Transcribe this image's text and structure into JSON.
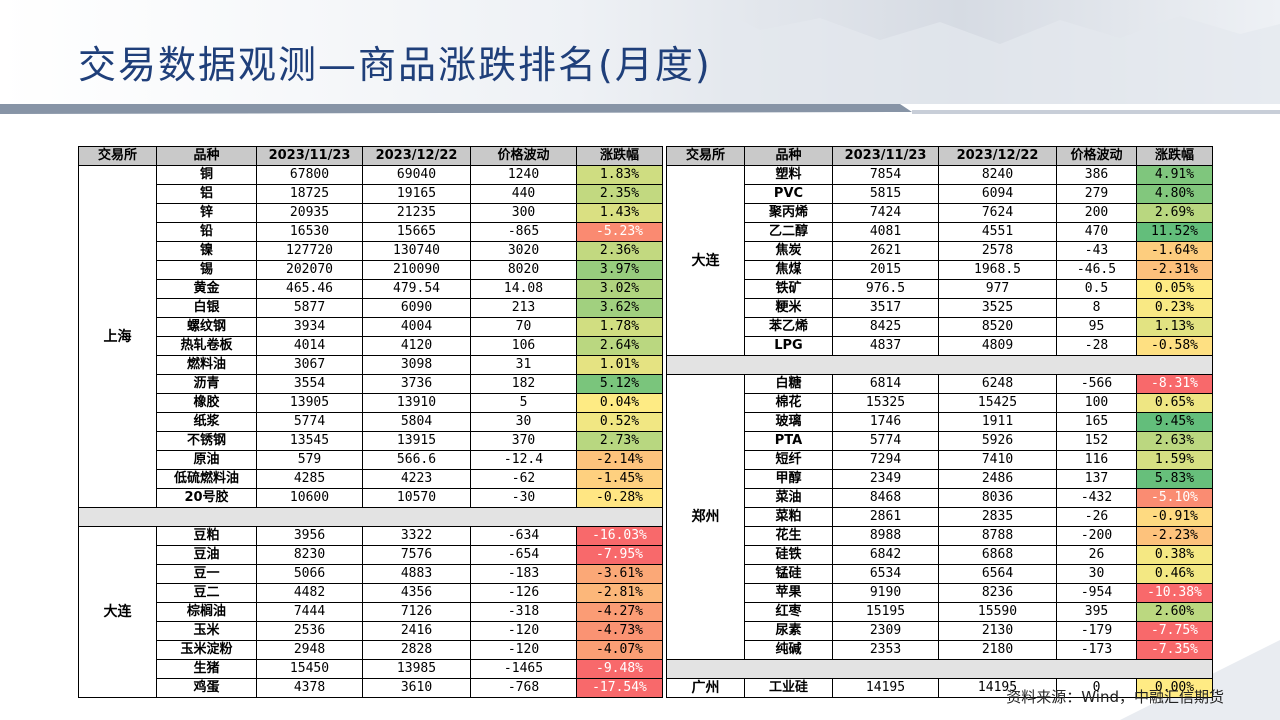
{
  "title": "交易数据观测—商品涨跌排名(月度)",
  "source": "资料来源：Wind，中融汇信期货",
  "headers": [
    "交易所",
    "品种",
    "2023/11/23",
    "2023/12/22",
    "价格波动",
    "涨跌幅"
  ],
  "left_sections": [
    {
      "exchange": "上海",
      "rows": [
        {
          "name": "铜",
          "p1": "67800",
          "p2": "69040",
          "chg": "1240",
          "pct": 1.83
        },
        {
          "name": "铝",
          "p1": "18725",
          "p2": "19165",
          "chg": "440",
          "pct": 2.35
        },
        {
          "name": "锌",
          "p1": "20935",
          "p2": "21235",
          "chg": "300",
          "pct": 1.43
        },
        {
          "name": "铅",
          "p1": "16530",
          "p2": "15665",
          "chg": "-865",
          "pct": -5.23
        },
        {
          "name": "镍",
          "p1": "127720",
          "p2": "130740",
          "chg": "3020",
          "pct": 2.36
        },
        {
          "name": "锡",
          "p1": "202070",
          "p2": "210090",
          "chg": "8020",
          "pct": 3.97
        },
        {
          "name": "黄金",
          "p1": "465.46",
          "p2": "479.54",
          "chg": "14.08",
          "pct": 3.02
        },
        {
          "name": "白银",
          "p1": "5877",
          "p2": "6090",
          "chg": "213",
          "pct": 3.62
        },
        {
          "name": "螺纹钢",
          "p1": "3934",
          "p2": "4004",
          "chg": "70",
          "pct": 1.78
        },
        {
          "name": "热轧卷板",
          "p1": "4014",
          "p2": "4120",
          "chg": "106",
          "pct": 2.64
        },
        {
          "name": "燃料油",
          "p1": "3067",
          "p2": "3098",
          "chg": "31",
          "pct": 1.01
        },
        {
          "name": "沥青",
          "p1": "3554",
          "p2": "3736",
          "chg": "182",
          "pct": 5.12
        },
        {
          "name": "橡胶",
          "p1": "13905",
          "p2": "13910",
          "chg": "5",
          "pct": 0.04
        },
        {
          "name": "纸浆",
          "p1": "5774",
          "p2": "5804",
          "chg": "30",
          "pct": 0.52
        },
        {
          "name": "不锈钢",
          "p1": "13545",
          "p2": "13915",
          "chg": "370",
          "pct": 2.73
        },
        {
          "name": "原油",
          "p1": "579",
          "p2": "566.6",
          "chg": "-12.4",
          "pct": -2.14
        },
        {
          "name": "低硫燃料油",
          "p1": "4285",
          "p2": "4223",
          "chg": "-62",
          "pct": -1.45
        },
        {
          "name": "20号胶",
          "p1": "10600",
          "p2": "10570",
          "chg": "-30",
          "pct": -0.28
        }
      ]
    },
    {
      "exchange": "大连",
      "rows": [
        {
          "name": "豆粕",
          "p1": "3956",
          "p2": "3322",
          "chg": "-634",
          "pct": -16.03
        },
        {
          "name": "豆油",
          "p1": "8230",
          "p2": "7576",
          "chg": "-654",
          "pct": -7.95
        },
        {
          "name": "豆一",
          "p1": "5066",
          "p2": "4883",
          "chg": "-183",
          "pct": -3.61
        },
        {
          "name": "豆二",
          "p1": "4482",
          "p2": "4356",
          "chg": "-126",
          "pct": -2.81
        },
        {
          "name": "棕榈油",
          "p1": "7444",
          "p2": "7126",
          "chg": "-318",
          "pct": -4.27
        },
        {
          "name": "玉米",
          "p1": "2536",
          "p2": "2416",
          "chg": "-120",
          "pct": -4.73
        },
        {
          "name": "玉米淀粉",
          "p1": "2948",
          "p2": "2828",
          "chg": "-120",
          "pct": -4.07
        },
        {
          "name": "生猪",
          "p1": "15450",
          "p2": "13985",
          "chg": "-1465",
          "pct": -9.48
        },
        {
          "name": "鸡蛋",
          "p1": "4378",
          "p2": "3610",
          "chg": "-768",
          "pct": -17.54
        }
      ]
    }
  ],
  "right_sections": [
    {
      "exchange": "大连",
      "rows": [
        {
          "name": "塑料",
          "p1": "7854",
          "p2": "8240",
          "chg": "386",
          "pct": 4.91
        },
        {
          "name": "PVC",
          "p1": "5815",
          "p2": "6094",
          "chg": "279",
          "pct": 4.8
        },
        {
          "name": "聚丙烯",
          "p1": "7424",
          "p2": "7624",
          "chg": "200",
          "pct": 2.69
        },
        {
          "name": "乙二醇",
          "p1": "4081",
          "p2": "4551",
          "chg": "470",
          "pct": 11.52
        },
        {
          "name": "焦炭",
          "p1": "2621",
          "p2": "2578",
          "chg": "-43",
          "pct": -1.64
        },
        {
          "name": "焦煤",
          "p1": "2015",
          "p2": "1968.5",
          "chg": "-46.5",
          "pct": -2.31
        },
        {
          "name": "铁矿",
          "p1": "976.5",
          "p2": "977",
          "chg": "0.5",
          "pct": 0.05
        },
        {
          "name": "粳米",
          "p1": "3517",
          "p2": "3525",
          "chg": "8",
          "pct": 0.23
        },
        {
          "name": "苯乙烯",
          "p1": "8425",
          "p2": "8520",
          "chg": "95",
          "pct": 1.13
        },
        {
          "name": "LPG",
          "p1": "4837",
          "p2": "4809",
          "chg": "-28",
          "pct": -0.58
        }
      ]
    },
    {
      "exchange": "郑州",
      "rows": [
        {
          "name": "白糖",
          "p1": "6814",
          "p2": "6248",
          "chg": "-566",
          "pct": -8.31
        },
        {
          "name": "棉花",
          "p1": "15325",
          "p2": "15425",
          "chg": "100",
          "pct": 0.65
        },
        {
          "name": "玻璃",
          "p1": "1746",
          "p2": "1911",
          "chg": "165",
          "pct": 9.45
        },
        {
          "name": "PTA",
          "p1": "5774",
          "p2": "5926",
          "chg": "152",
          "pct": 2.63
        },
        {
          "name": "短纤",
          "p1": "7294",
          "p2": "7410",
          "chg": "116",
          "pct": 1.59
        },
        {
          "name": "甲醇",
          "p1": "2349",
          "p2": "2486",
          "chg": "137",
          "pct": 5.83
        },
        {
          "name": "菜油",
          "p1": "8468",
          "p2": "8036",
          "chg": "-432",
          "pct": -5.1
        },
        {
          "name": "菜粕",
          "p1": "2861",
          "p2": "2835",
          "chg": "-26",
          "pct": -0.91
        },
        {
          "name": "花生",
          "p1": "8988",
          "p2": "8788",
          "chg": "-200",
          "pct": -2.23
        },
        {
          "name": "硅铁",
          "p1": "6842",
          "p2": "6868",
          "chg": "26",
          "pct": 0.38
        },
        {
          "name": "锰硅",
          "p1": "6534",
          "p2": "6564",
          "chg": "30",
          "pct": 0.46
        },
        {
          "name": "苹果",
          "p1": "9190",
          "p2": "8236",
          "chg": "-954",
          "pct": -10.38
        },
        {
          "name": "红枣",
          "p1": "15195",
          "p2": "15590",
          "chg": "395",
          "pct": 2.6
        },
        {
          "name": "尿素",
          "p1": "2309",
          "p2": "2130",
          "chg": "-179",
          "pct": -7.75
        },
        {
          "name": "纯碱",
          "p1": "2353",
          "p2": "2180",
          "chg": "-173",
          "pct": -7.35
        }
      ]
    },
    {
      "exchange": "广州",
      "rows": [
        {
          "name": "工业硅",
          "p1": "14195",
          "p2": "14195",
          "chg": "0",
          "pct": 0.0
        }
      ]
    }
  ]
}
